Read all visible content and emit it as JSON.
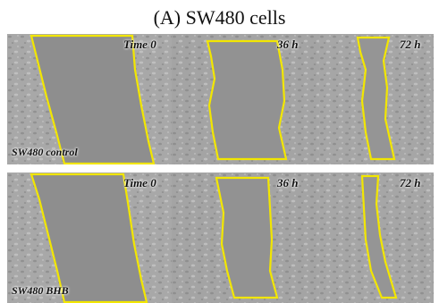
{
  "figure": {
    "title": "(A) SW480 cells",
    "rows": [
      {
        "label": "SW480 control",
        "panels": [
          {
            "time": "Time 0"
          },
          {
            "time": "36 h"
          },
          {
            "time": "72 h"
          }
        ]
      },
      {
        "label": "SW480 BHB",
        "panels": [
          {
            "time": "Time 0"
          },
          {
            "time": "36 h"
          },
          {
            "time": "72 h"
          }
        ]
      }
    ]
  },
  "colors": {
    "wound_outline": "#f2e600",
    "cell_background": "#a9a9a9",
    "wound_area": "#8e8e8e"
  }
}
